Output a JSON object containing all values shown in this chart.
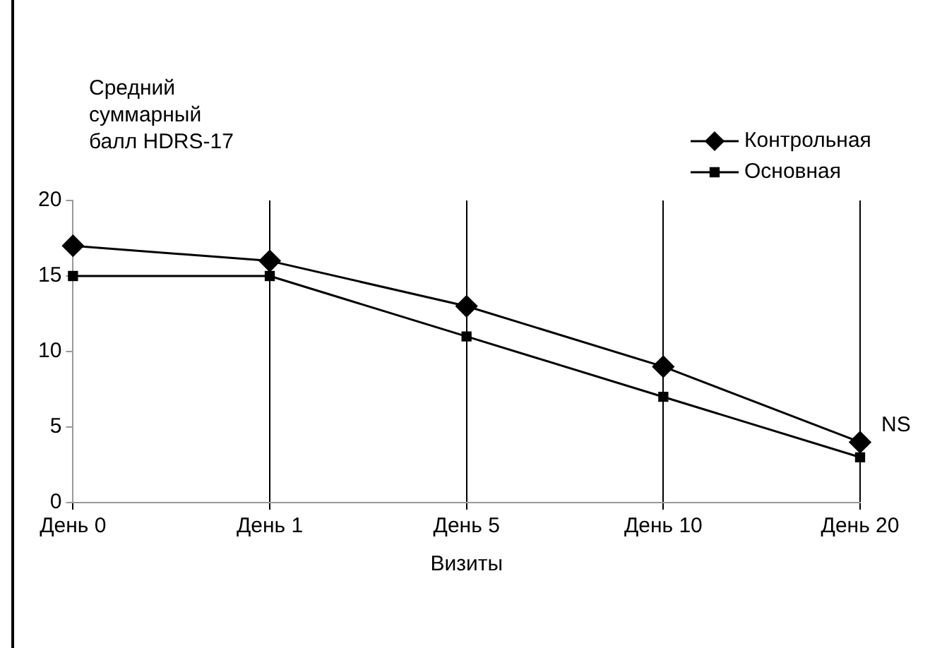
{
  "chart_data": {
    "type": "line",
    "ylabel": "Средний\nсуммарный\nбалл HDRS-17",
    "xlabel": "Визиты",
    "categories": [
      "День 0",
      "День 1",
      "День 5",
      "День 10",
      "День 20"
    ],
    "series": [
      {
        "name": "Контрольная",
        "color": "#000000",
        "marker": "diamond",
        "values": [
          17,
          16,
          13,
          9,
          4
        ]
      },
      {
        "name": "Основная",
        "color": "#000000",
        "marker": "square",
        "values": [
          15,
          15,
          11,
          7,
          3
        ]
      }
    ],
    "ylim": [
      0,
      20
    ],
    "yticks": [
      0,
      5,
      10,
      15,
      20
    ],
    "grid": "x",
    "legend": "top right",
    "line_style": "solid",
    "annotations": [
      {
        "text": "NS",
        "x": "День 20",
        "y": 4
      }
    ]
  }
}
